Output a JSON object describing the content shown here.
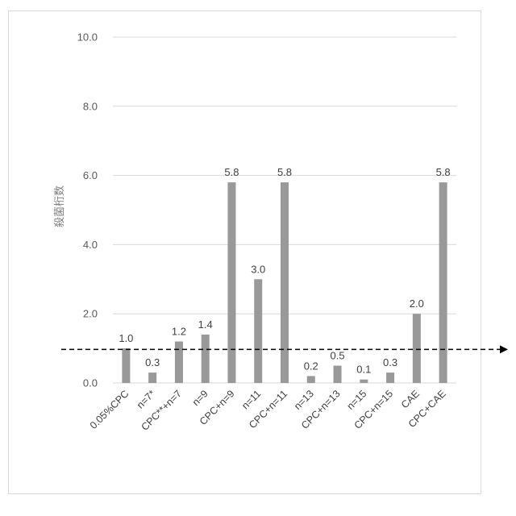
{
  "chart_data": {
    "type": "bar",
    "title": "",
    "xlabel": "",
    "ylabel": "殺菌桁数",
    "ylim": [
      0,
      10
    ],
    "yticks": [
      "0.0",
      "2.0",
      "4.0",
      "6.0",
      "8.0",
      "10.0"
    ],
    "grid": true,
    "categories": [
      "0.05%CPC",
      "n=7*",
      "CPC**+n=7",
      "n=9",
      "CPC+n=9",
      "n=11",
      "CPC+n=11",
      "n=13",
      "CPC+n=13",
      "n=15",
      "CPC+n=15",
      "CAE",
      "CPC+CAE"
    ],
    "values": [
      1.0,
      0.3,
      1.2,
      1.4,
      5.8,
      3.0,
      5.8,
      0.2,
      0.5,
      0.1,
      0.3,
      2.0,
      5.8
    ],
    "value_labels": [
      "1.0",
      "0.3",
      "1.2",
      "1.4",
      "5.8",
      "3.0",
      "5.8",
      "0.2",
      "0.5",
      "0.1",
      "0.3",
      "2.0",
      "5.8"
    ],
    "reference_line": {
      "y": 0.97,
      "style": "dashed-arrow"
    },
    "colors": {
      "bar": "#999999",
      "grid": "#d9d9d9",
      "reference": "#000000"
    }
  }
}
